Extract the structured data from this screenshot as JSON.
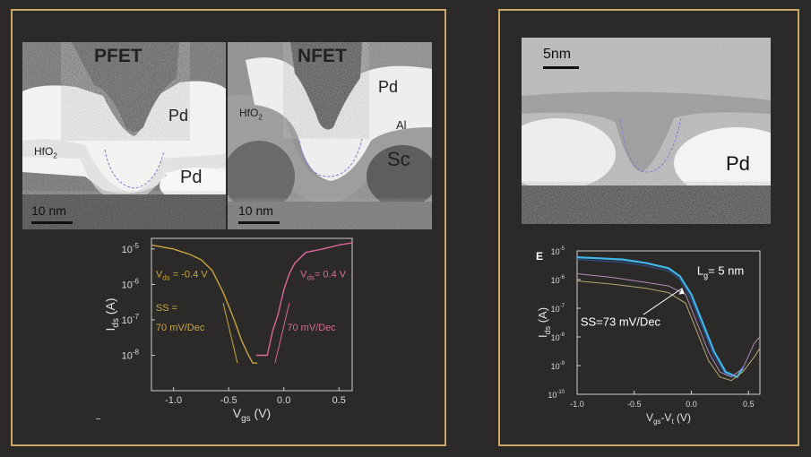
{
  "left_panel": {
    "pfet_image": {
      "title": "PFET",
      "labels": {
        "pd": "Pd",
        "hfo2": "HfO",
        "hfo2_sub": "2",
        "pd_bottom": "Pd"
      },
      "scale_bar": "10 nm"
    },
    "nfet_image": {
      "title": "NFET",
      "labels": {
        "pd": "Pd",
        "hfo2": "HfO",
        "hfo2_sub": "2",
        "al": "Al",
        "sc": "Sc"
      },
      "scale_bar": "10 nm"
    }
  },
  "right_panel": {
    "image": {
      "scale_bar": "5nm",
      "labels": {
        "pd": "Pd"
      }
    }
  },
  "colors": {
    "frame": "#c9a86a",
    "pfet_curve": "#c9a640",
    "nfet_curve": "#d8679a",
    "cyan_curve": "#3fb6e6",
    "background": "#2b2a29"
  },
  "chart_data": [
    {
      "type": "line",
      "log_y": true,
      "xlabel": "V",
      "xlabel_sub": "gs",
      "xlabel_unit": " (V)",
      "ylabel": "I",
      "ylabel_sub": "ds",
      "ylabel_unit": " (A)",
      "xlim": [
        -1.2,
        0.62
      ],
      "ylim": [
        1e-09,
        2e-05
      ],
      "x_ticks": [
        -1.0,
        -0.5,
        0.0,
        0.5
      ],
      "x_tick_labels": [
        "-1.0",
        "-0.5",
        "0.0",
        "0.5"
      ],
      "y_ticks": [
        1e-08,
        1e-07,
        1e-06,
        1e-05
      ],
      "y_tick_labels": {
        "base": [
          "10",
          "10",
          "10",
          "10"
        ],
        "exp": [
          "-8",
          "-7",
          "-6",
          "-5"
        ]
      },
      "annotations": {
        "pfet_vds": {
          "pre": "V",
          "sub": "ds",
          "post": " = -0.4 V"
        },
        "nfet_vds": {
          "pre": "V",
          "sub": "ds",
          "post": "= 0.4 V"
        },
        "ss_left_1": "SS =",
        "ss_left_2": "70 mV/Dec",
        "ss_right": "70 mV/Dec"
      },
      "series": [
        {
          "x": [
            -1.2,
            -1.0,
            -0.85,
            -0.75,
            -0.65,
            -0.55,
            -0.45,
            -0.38,
            -0.32,
            -0.28,
            -0.24
          ],
          "y": [
            1.3e-05,
            1e-05,
            7e-06,
            5e-06,
            2.5e-06,
            6e-07,
            1e-07,
            2.5e-08,
            1e-08,
            6e-09,
            6e-09
          ]
        },
        {
          "x": [
            -0.25,
            -0.2,
            -0.15,
            -0.1,
            -0.05,
            0.0,
            0.05,
            0.1,
            0.2,
            0.35,
            0.5,
            0.62
          ],
          "y": [
            1e-08,
            1e-08,
            1e-08,
            5e-08,
            1.5e-07,
            7e-07,
            2e-06,
            4e-06,
            8e-06,
            1e-05,
            1.3e-05,
            1.5e-05
          ]
        }
      ]
    },
    {
      "type": "line",
      "log_y": true,
      "panel_letter": "E",
      "xlabel": "V",
      "xlabel_sub1": "gs",
      "xlabel_mid": "-V",
      "xlabel_sub2": "t",
      "xlabel_unit": " (V)",
      "ylabel": "I",
      "ylabel_sub": "ds",
      "ylabel_unit": " (A)",
      "xlim": [
        -1.0,
        0.6
      ],
      "ylim": [
        1e-10,
        1e-05
      ],
      "x_ticks": [
        -1.0,
        -0.5,
        0.0,
        0.5
      ],
      "x_tick_labels": [
        "-1.0",
        "-0.5",
        "0.0",
        "0.5"
      ],
      "y_ticks": [
        1e-10,
        1e-09,
        1e-08,
        1e-07,
        1e-06,
        1e-05
      ],
      "y_tick_labels": {
        "base": [
          "10",
          "10",
          "10",
          "10",
          "10",
          "10"
        ],
        "exp": [
          "-10",
          "-9",
          "-8",
          "-7",
          "-6",
          "-5"
        ]
      },
      "annotations": {
        "lg": {
          "pre": "L",
          "sub": "g",
          "post": "= 5 nm"
        },
        "ss": "SS=73 mV/Dec"
      },
      "series": [
        {
          "x": [
            -1.0,
            -0.8,
            -0.6,
            -0.4,
            -0.2,
            -0.1,
            0.0,
            0.1,
            0.2,
            0.3,
            0.4,
            0.45
          ],
          "y": [
            5e-06,
            4.5e-06,
            4e-06,
            3e-06,
            2e-06,
            1e-06,
            2e-07,
            2e-08,
            2e-09,
            5e-10,
            4e-10,
            1e-09
          ]
        },
        {
          "x": [
            -1.0,
            -0.8,
            -0.6,
            -0.4,
            -0.2,
            -0.1,
            0.0,
            0.1,
            0.2,
            0.3,
            0.4,
            0.45
          ],
          "y": [
            6e-06,
            5.5e-06,
            5e-06,
            3.8e-06,
            2.5e-06,
            1.3e-06,
            3e-07,
            3e-08,
            3e-09,
            6e-10,
            4e-10,
            8e-10
          ]
        },
        {
          "x": [
            -1.0,
            -0.7,
            -0.4,
            -0.2,
            -0.05,
            0.05,
            0.15,
            0.25,
            0.35,
            0.45,
            0.55,
            0.6
          ],
          "y": [
            1.6e-06,
            1.2e-06,
            8e-07,
            6e-07,
            3e-07,
            3e-08,
            3e-09,
            6e-10,
            4e-10,
            8e-10,
            6e-09,
            1e-08
          ]
        },
        {
          "x": [
            -1.0,
            -0.7,
            -0.4,
            -0.2,
            -0.05,
            0.05,
            0.15,
            0.25,
            0.35,
            0.45,
            0.55,
            0.6
          ],
          "y": [
            9e-07,
            7e-07,
            5e-07,
            3.5e-07,
            1.5e-07,
            1.5e-08,
            1.5e-09,
            4e-10,
            3e-10,
            6e-10,
            2e-09,
            4e-09
          ]
        }
      ]
    }
  ]
}
